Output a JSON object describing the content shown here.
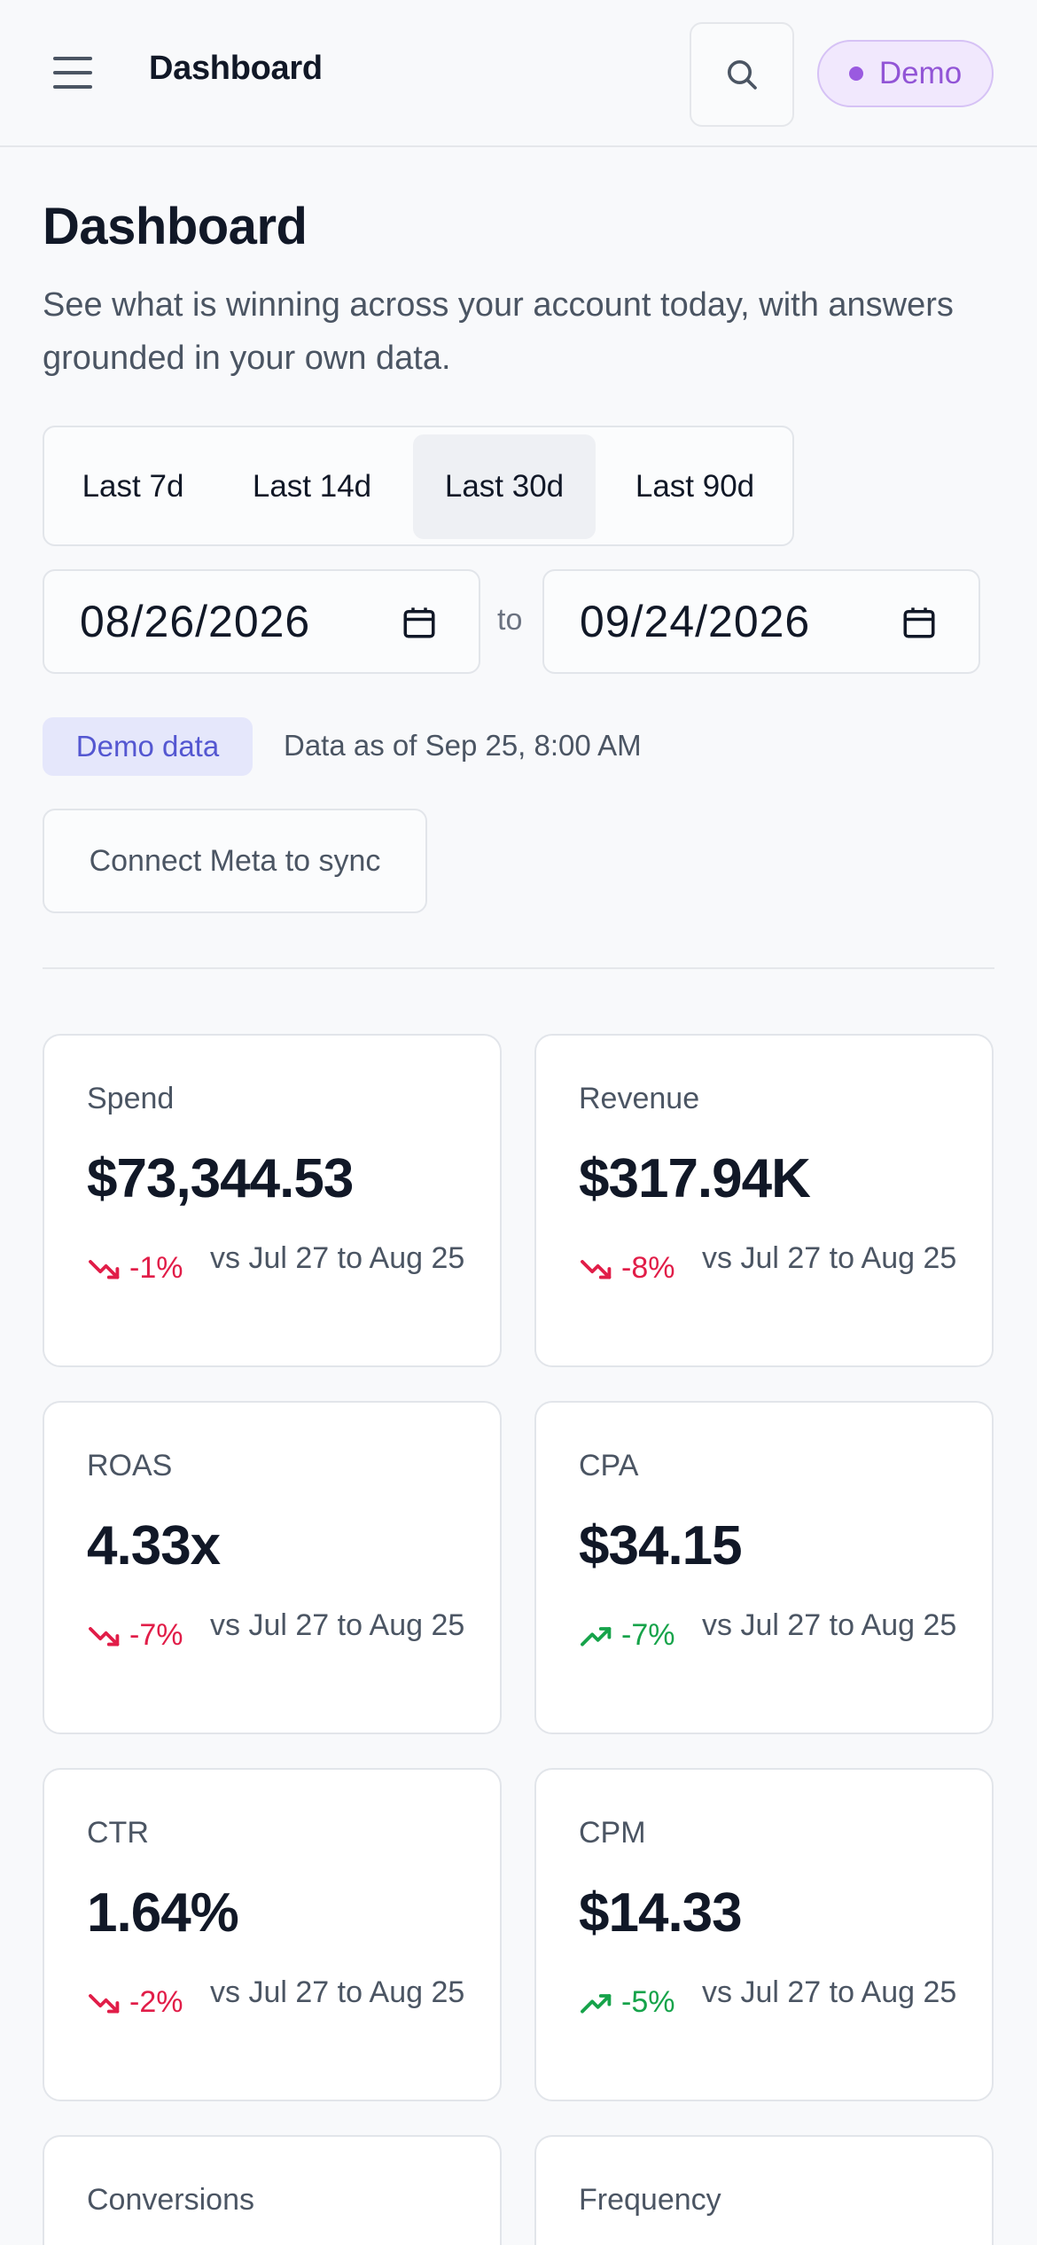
{
  "header": {
    "title": "Dashboard",
    "demo_label": "Demo"
  },
  "page": {
    "title": "Dashboard",
    "subtitle": "See what is winning across your account today, with answers grounded in your own data."
  },
  "ranges": [
    {
      "label": "Last 7d",
      "active": false
    },
    {
      "label": "Last 14d",
      "active": false
    },
    {
      "label": "Last 30d",
      "active": true
    },
    {
      "label": "Last 90d",
      "active": false
    }
  ],
  "dates": {
    "start": "08/26/2026",
    "to_label": "to",
    "end": "09/24/2026"
  },
  "status": {
    "badge": "Demo data",
    "as_of": "Data as of Sep 25, 8:00 AM"
  },
  "connect_button": "Connect Meta to sync",
  "metrics": [
    {
      "label": "Spend",
      "value": "$73,344.53",
      "delta": "-1%",
      "trend": "down",
      "compare": "vs Jul 27 to Aug 25"
    },
    {
      "label": "Revenue",
      "value": "$317.94K",
      "delta": "-8%",
      "trend": "down",
      "compare": "vs Jul 27 to Aug 25"
    },
    {
      "label": "ROAS",
      "value": "4.33x",
      "delta": "-7%",
      "trend": "down",
      "compare": "vs Jul 27 to Aug 25"
    },
    {
      "label": "CPA",
      "value": "$34.15",
      "delta": "-7%",
      "trend": "up",
      "compare": "vs Jul 27 to Aug 25"
    },
    {
      "label": "CTR",
      "value": "1.64%",
      "delta": "-2%",
      "trend": "down",
      "compare": "vs Jul 27 to Aug 25"
    },
    {
      "label": "CPM",
      "value": "$14.33",
      "delta": "-5%",
      "trend": "up",
      "compare": "vs Jul 27 to Aug 25"
    },
    {
      "label": "Conversions"
    },
    {
      "label": "Frequency"
    }
  ],
  "colors": {
    "negative": "#e11d48",
    "positive": "#16a34a",
    "accent": "#9255d6",
    "badge": "#5457d1"
  }
}
